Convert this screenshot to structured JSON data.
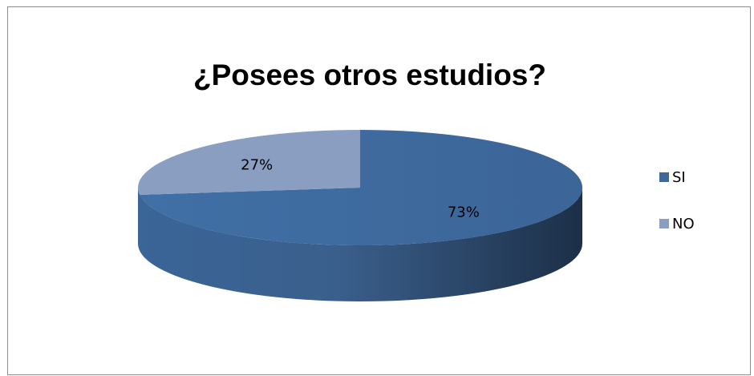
{
  "chart_data": {
    "type": "pie",
    "title": "¿Posees otros estudios?",
    "categories": [
      "SI",
      "NO"
    ],
    "values": [
      73,
      27
    ],
    "data_labels": [
      "73%",
      "27%"
    ],
    "colors": [
      "#3f6898",
      "#8a9ec2"
    ],
    "legend": "right",
    "three_d": true
  }
}
